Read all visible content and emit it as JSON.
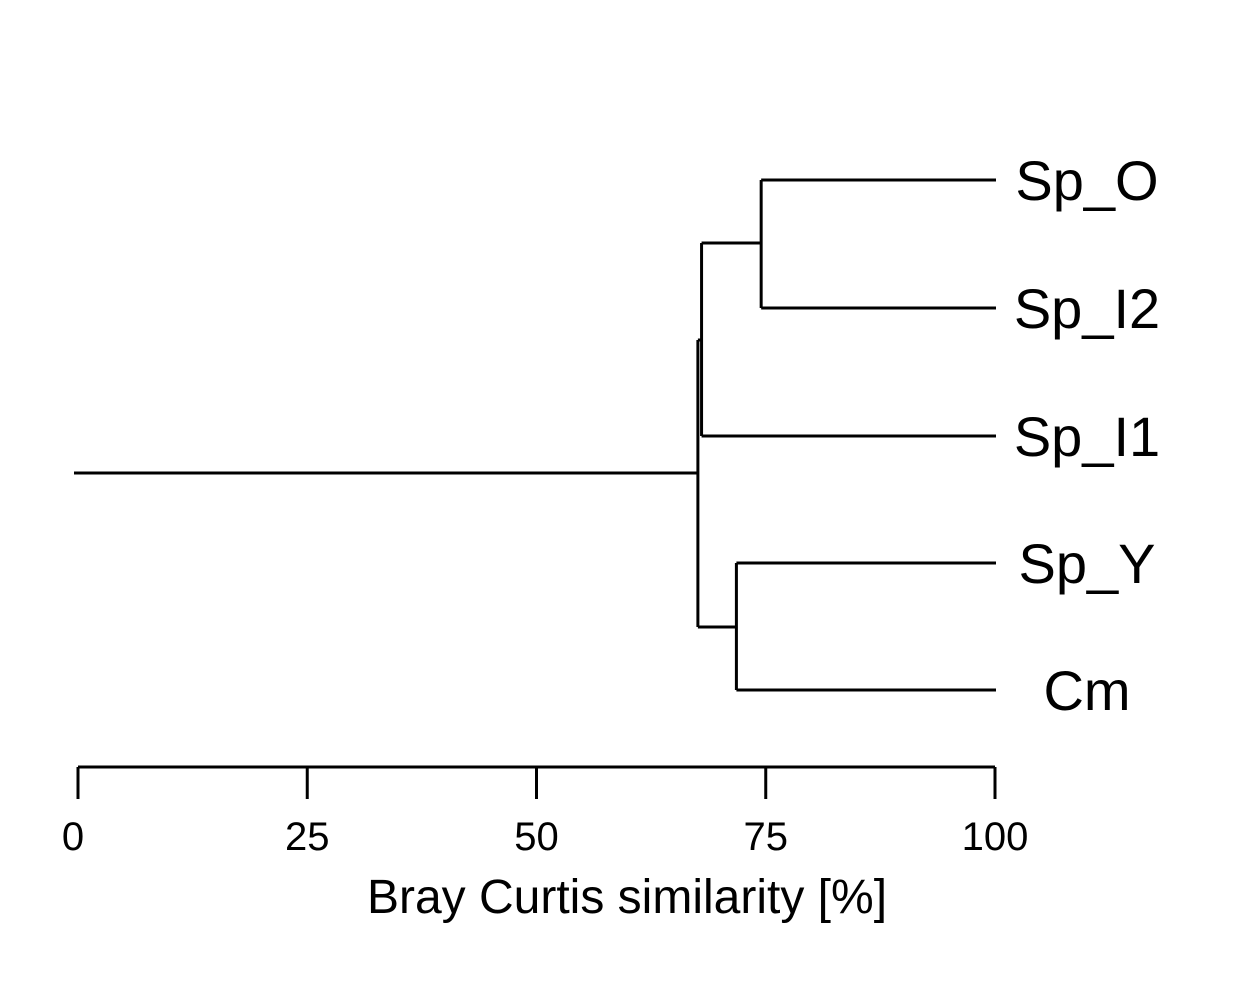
{
  "chart_data": {
    "type": "dendrogram",
    "xlabel": "Bray Curtis similarity [%]",
    "xlim": [
      0,
      100
    ],
    "ticks": [
      0,
      25,
      50,
      75,
      100
    ],
    "tick_labels": [
      "0",
      "25",
      "50",
      "75",
      "100"
    ],
    "grid": false,
    "leaves": [
      "Sp_O",
      "Sp_I2",
      "Sp_I1",
      "Sp_Y",
      "Cm"
    ],
    "merges": [
      {
        "members": [
          "Sp_O",
          "Sp_I2"
        ],
        "similarity": 74.5
      },
      {
        "members": [
          "Sp_O",
          "Sp_I2",
          "Sp_I1"
        ],
        "similarity": 68.0
      },
      {
        "members": [
          "Sp_Y",
          "Cm"
        ],
        "similarity": 71.8
      },
      {
        "members": [
          "Sp_O",
          "Sp_I2",
          "Sp_I1",
          "Sp_Y",
          "Cm"
        ],
        "similarity": 67.6
      }
    ],
    "root_extends_to": 0
  },
  "colors": {
    "line": "#000000",
    "background": "#ffffff"
  }
}
